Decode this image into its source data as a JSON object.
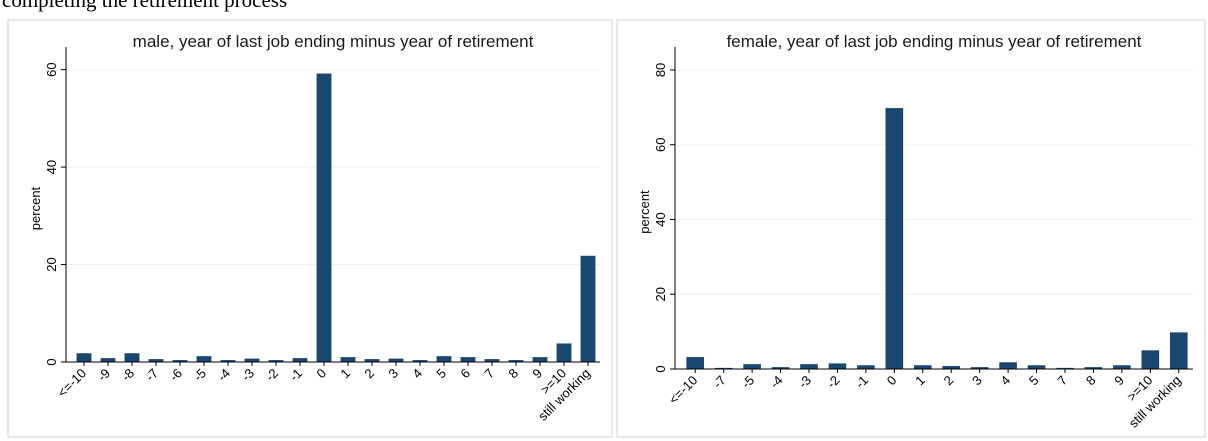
{
  "caption": "completing the retirement process",
  "chart_data": [
    {
      "type": "bar",
      "title": "male, year of last job ending minus year of retirement",
      "y_label": "percent",
      "categories": [
        "<=-10",
        "-9",
        "-8",
        "-7",
        "-6",
        "-5",
        "-4",
        "-3",
        "-2",
        "-1",
        "0",
        "1",
        "2",
        "3",
        "4",
        "5",
        "6",
        "7",
        "8",
        "9",
        ">=10",
        "still working"
      ],
      "values": [
        1.8,
        0.8,
        1.8,
        0.6,
        0.4,
        1.2,
        0.4,
        0.7,
        0.4,
        0.8,
        59.2,
        1.0,
        0.6,
        0.7,
        0.4,
        1.2,
        1.0,
        0.6,
        0.4,
        1.0,
        3.8,
        21.8
      ],
      "color": "#1a476f",
      "ylim": [
        0,
        63
      ],
      "yticks": [
        0,
        20,
        40,
        60
      ],
      "grid": true
    },
    {
      "type": "bar",
      "title": "female, year of last job ending minus year of retirement",
      "y_label": "percent",
      "categories": [
        "<=-10",
        "-7",
        "-5",
        "-4",
        "-3",
        "-2",
        "-1",
        "0",
        "1",
        "2",
        "3",
        "4",
        "5",
        "7",
        "8",
        "9",
        ">=10",
        "still working"
      ],
      "values": [
        3.2,
        0.3,
        1.3,
        0.5,
        1.3,
        1.5,
        1.0,
        69.8,
        1.0,
        0.8,
        0.5,
        1.8,
        1.0,
        0.3,
        0.5,
        1.0,
        5.0,
        9.8
      ],
      "color": "#1a476f",
      "ylim": [
        0,
        84
      ],
      "yticks": [
        0,
        20,
        40,
        60,
        80
      ],
      "grid": true
    }
  ]
}
